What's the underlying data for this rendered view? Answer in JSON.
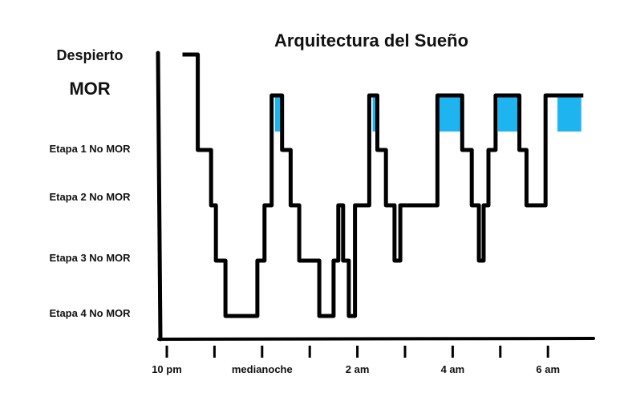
{
  "chart_data": {
    "type": "line",
    "title": "Arquitectura del Sueño",
    "xlabel": "",
    "ylabel": "",
    "line_color": "#000000",
    "rem_fill_color": "#1EB4F0",
    "x_unit": "hours after 10 pm",
    "xlim": [
      -0.1,
      8.8
    ],
    "x_ticks": [
      {
        "x": 0,
        "label": "10 pm"
      },
      {
        "x": 1,
        "label": ""
      },
      {
        "x": 2,
        "label": "medianoche"
      },
      {
        "x": 3,
        "label": ""
      },
      {
        "x": 4,
        "label": "2 am"
      },
      {
        "x": 5,
        "label": ""
      },
      {
        "x": 6,
        "label": "4 am"
      },
      {
        "x": 7,
        "label": ""
      },
      {
        "x": 8,
        "label": "6 am"
      }
    ],
    "y_levels": [
      {
        "level": 0,
        "label": "Despierto"
      },
      {
        "level": 1,
        "label": "MOR"
      },
      {
        "level": 2,
        "label": "Etapa 1 No MOR"
      },
      {
        "level": 3,
        "label": "Etapa 2 No MOR"
      },
      {
        "level": 4,
        "label": "Etapa 3 No MOR"
      },
      {
        "level": 5,
        "label": "Etapa 4 No MOR"
      }
    ],
    "hypnogram": [
      [
        0.37,
        0
      ],
      [
        0.65,
        0
      ],
      [
        0.65,
        2
      ],
      [
        0.93,
        2
      ],
      [
        0.93,
        3
      ],
      [
        1.03,
        3
      ],
      [
        1.03,
        4
      ],
      [
        1.23,
        4
      ],
      [
        1.23,
        5
      ],
      [
        1.9,
        5
      ],
      [
        1.9,
        4
      ],
      [
        2.05,
        4
      ],
      [
        2.05,
        3
      ],
      [
        2.2,
        3
      ],
      [
        2.2,
        1
      ],
      [
        2.42,
        1
      ],
      [
        2.42,
        2
      ],
      [
        2.6,
        2
      ],
      [
        2.6,
        3
      ],
      [
        2.78,
        3
      ],
      [
        2.78,
        4
      ],
      [
        3.2,
        4
      ],
      [
        3.2,
        5
      ],
      [
        3.5,
        5
      ],
      [
        3.5,
        4
      ],
      [
        3.6,
        4
      ],
      [
        3.6,
        3
      ],
      [
        3.7,
        3
      ],
      [
        3.7,
        4
      ],
      [
        3.82,
        4
      ],
      [
        3.82,
        5
      ],
      [
        3.95,
        5
      ],
      [
        3.95,
        3
      ],
      [
        4.25,
        3
      ],
      [
        4.25,
        1
      ],
      [
        4.42,
        1
      ],
      [
        4.42,
        2
      ],
      [
        4.6,
        2
      ],
      [
        4.6,
        3
      ],
      [
        4.78,
        3
      ],
      [
        4.78,
        4
      ],
      [
        4.9,
        4
      ],
      [
        4.9,
        3
      ],
      [
        5.68,
        3
      ],
      [
        5.68,
        1
      ],
      [
        6.2,
        1
      ],
      [
        6.2,
        2
      ],
      [
        6.4,
        2
      ],
      [
        6.4,
        3
      ],
      [
        6.55,
        3
      ],
      [
        6.55,
        4
      ],
      [
        6.65,
        4
      ],
      [
        6.65,
        3
      ],
      [
        6.75,
        3
      ],
      [
        6.75,
        2
      ],
      [
        6.9,
        2
      ],
      [
        6.9,
        1
      ],
      [
        7.4,
        1
      ],
      [
        7.4,
        2
      ],
      [
        7.55,
        2
      ],
      [
        7.55,
        3
      ],
      [
        7.95,
        3
      ],
      [
        7.95,
        1
      ],
      [
        8.7,
        1
      ]
    ],
    "rem_periods": [
      [
        2.27,
        2.42
      ],
      [
        4.32,
        4.42
      ],
      [
        5.72,
        6.2
      ],
      [
        6.95,
        7.4
      ],
      [
        8.2,
        8.7
      ]
    ]
  }
}
